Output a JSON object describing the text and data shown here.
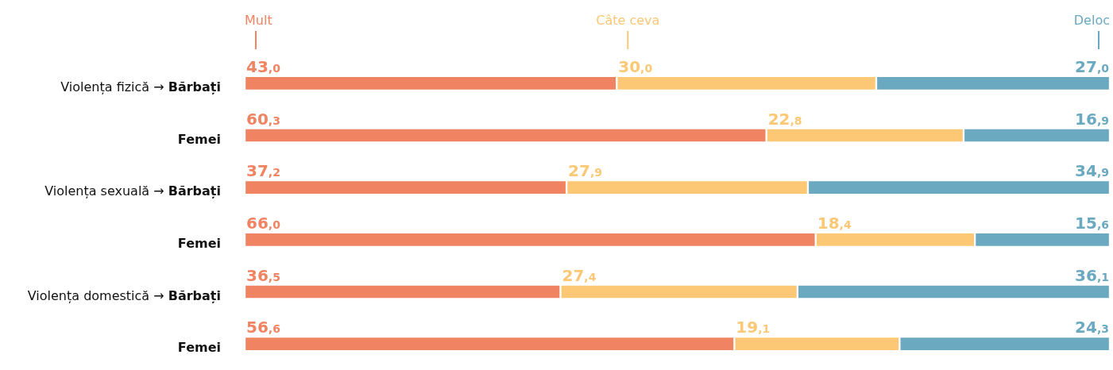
{
  "chart_data": {
    "type": "bar",
    "orientation": "horizontal",
    "stacked": true,
    "legend": "top",
    "categories": [
      "Violența fizică → Bărbați",
      "Femei",
      "Violența sexuală → Bărbați",
      "Femei",
      "Violența domestică → Bărbați",
      "Femei"
    ],
    "series": [
      {
        "name": "Mult",
        "color": "#f08462",
        "values": [
          43.0,
          60.3,
          37.2,
          66.0,
          36.5,
          56.6
        ],
        "value_labels": [
          "43,0",
          "60,3",
          "37,2",
          "66,0",
          "36,5",
          "56,6"
        ]
      },
      {
        "name": "Câte ceva",
        "color": "#fcc876",
        "values": [
          30.0,
          22.8,
          27.9,
          18.4,
          27.4,
          19.1
        ],
        "value_labels": [
          "30,0",
          "22,8",
          "27,9",
          "18,4",
          "27,4",
          "19,1"
        ]
      },
      {
        "name": "Deloc",
        "color": "#6ba9c0",
        "values": [
          27.0,
          16.9,
          34.9,
          15.6,
          36.1,
          24.3
        ],
        "value_labels": [
          "27,0",
          "16,9",
          "34,9",
          "15,6",
          "36,1",
          "24,3"
        ]
      }
    ]
  }
}
